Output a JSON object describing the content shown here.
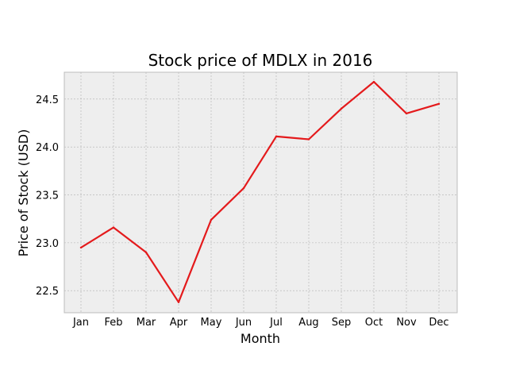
{
  "chart_data": {
    "type": "line",
    "title": "Stock price of MDLX in 2016",
    "xlabel": "Month",
    "ylabel": "Price of Stock (USD)",
    "categories": [
      "Jan",
      "Feb",
      "Mar",
      "Apr",
      "May",
      "Jun",
      "Jul",
      "Aug",
      "Sep",
      "Oct",
      "Nov",
      "Dec"
    ],
    "series": [
      {
        "values": [
          22.95,
          23.16,
          22.9,
          22.38,
          23.24,
          23.57,
          24.11,
          24.08,
          24.4,
          24.68,
          24.35,
          24.45
        ]
      }
    ],
    "ylim": [
      22.27,
      24.78
    ],
    "yticks": [
      "22.5",
      "23.0",
      "23.5",
      "24.0",
      "24.5"
    ],
    "grid": true,
    "colors": {
      "line": "#e41a1c",
      "plot_background": "#eeeeee",
      "grid": "#b0b0b0",
      "frame": "#bcbcbc"
    }
  }
}
